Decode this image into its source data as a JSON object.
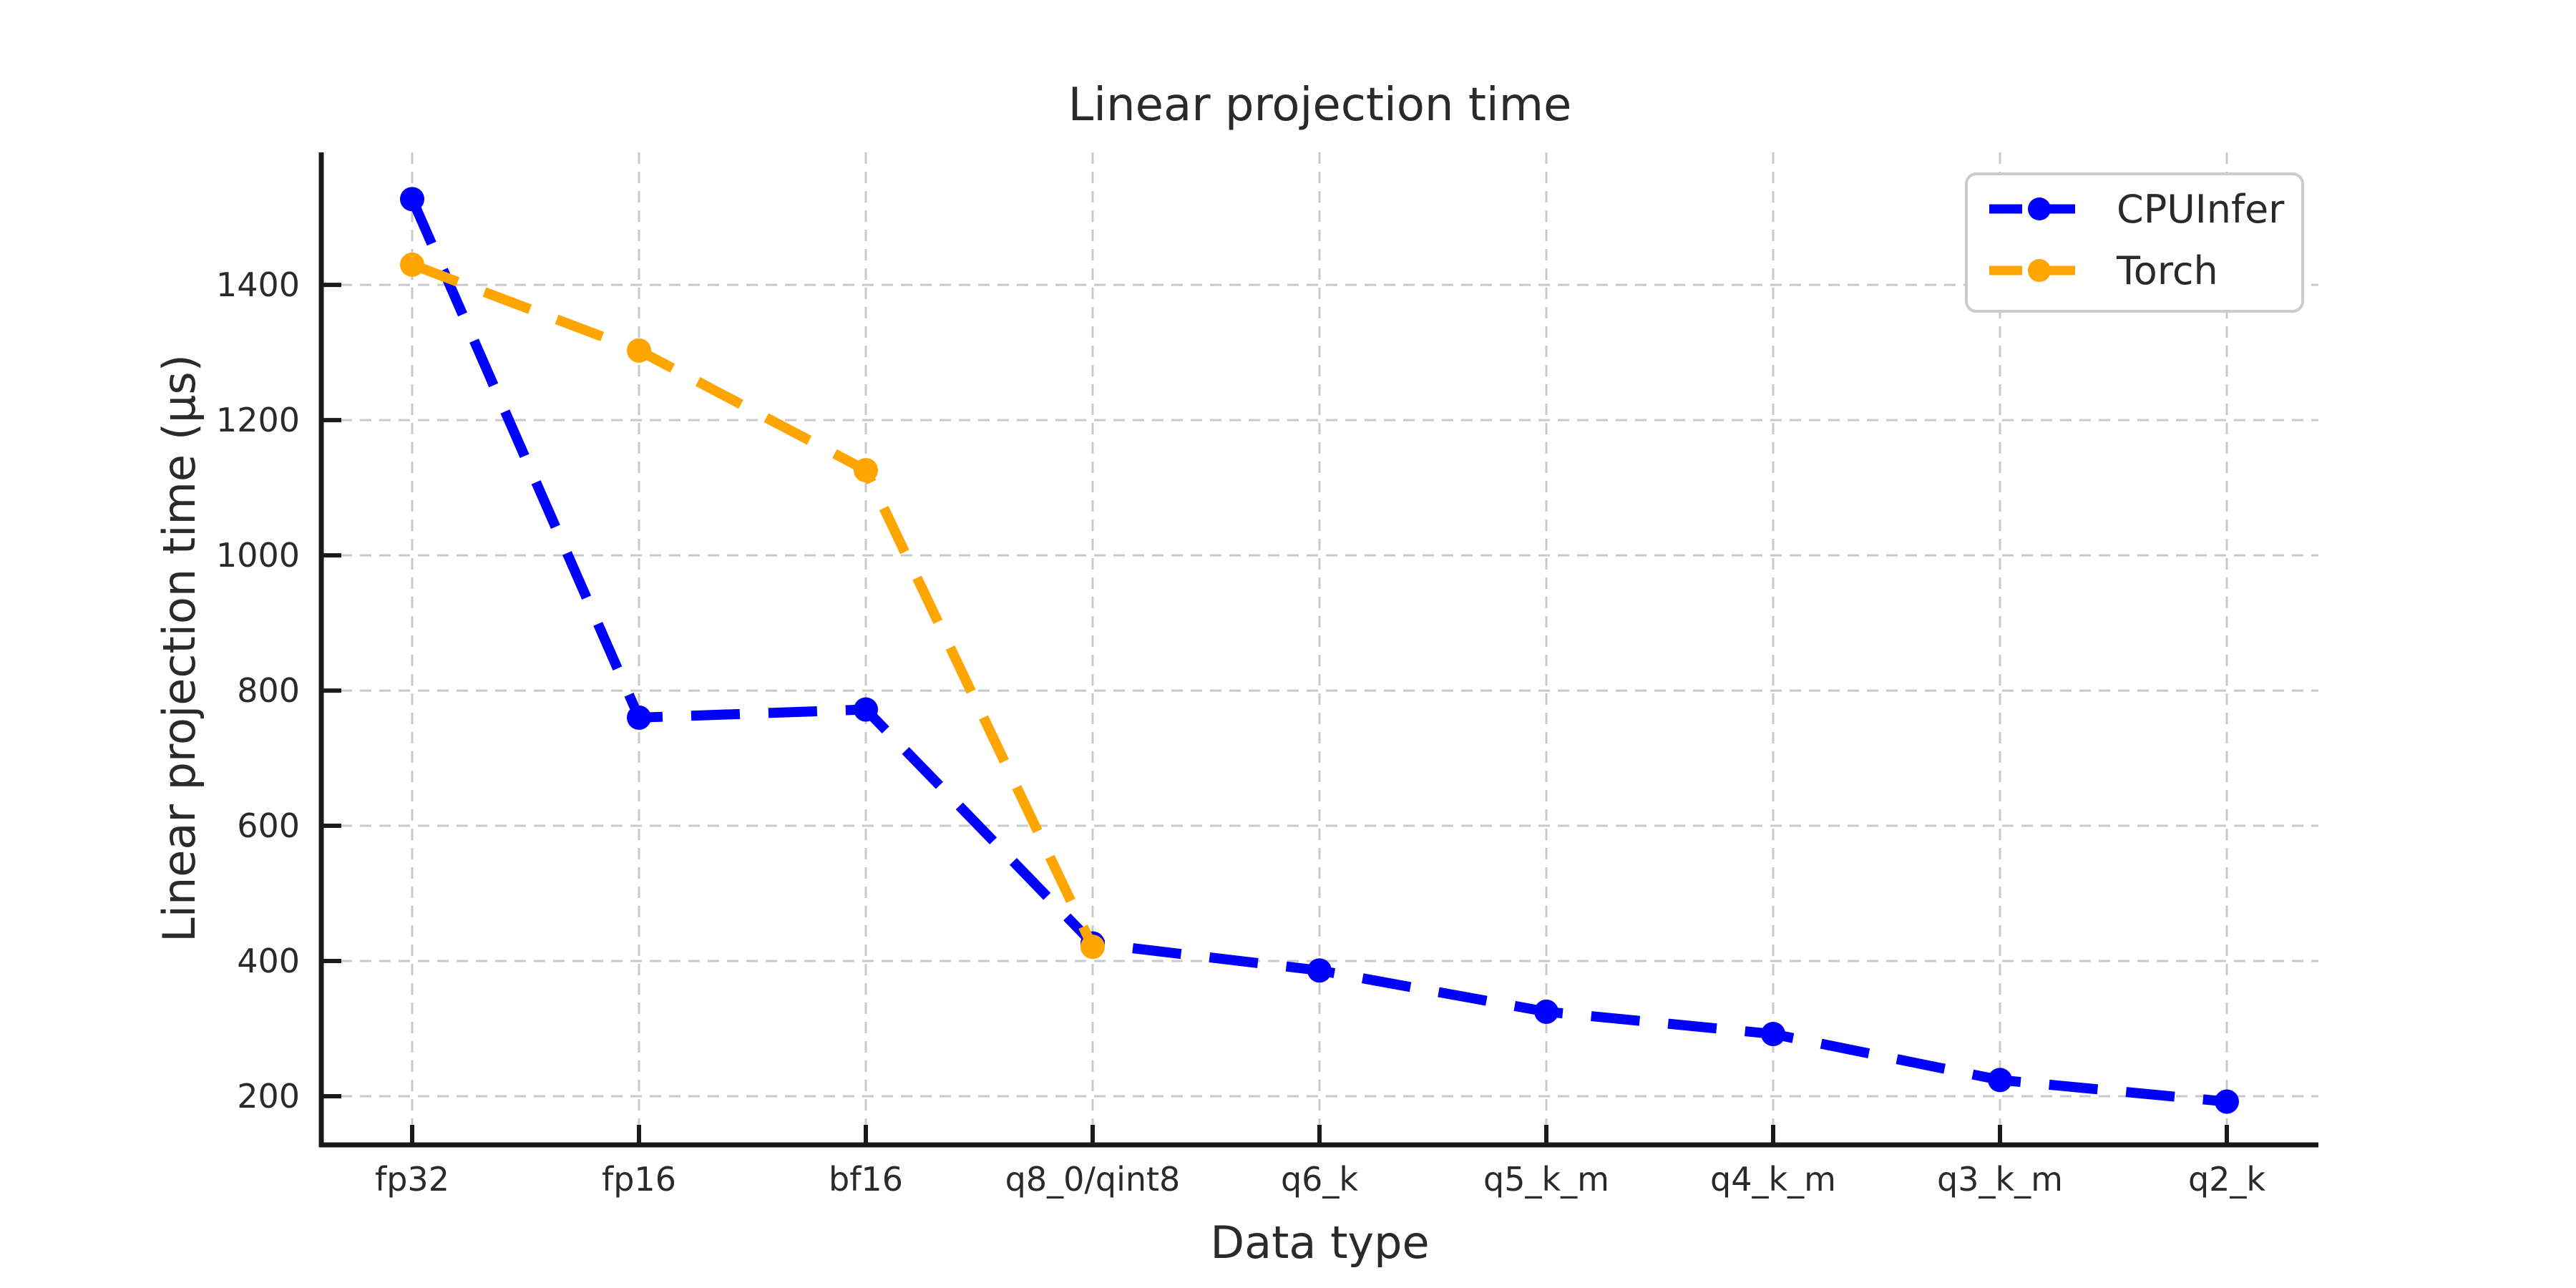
{
  "page": {
    "background_color": "#ffffff"
  },
  "chart_data": {
    "type": "line",
    "title": "Linear projection time",
    "xlabel": "Data type",
    "ylabel": "Linear projection time (μs)",
    "categories": [
      "fp32",
      "fp16",
      "bf16",
      "q8_0/qint8",
      "q6_k",
      "q5_k_m",
      "q4_k_m",
      "q3_k_m",
      "q2_k"
    ],
    "series": [
      {
        "name": "CPUInfer",
        "color": "#0000ff",
        "values": [
          1527,
          760,
          772,
          426,
          386,
          325,
          292,
          224,
          192
        ]
      },
      {
        "name": "Torch",
        "color": "#ffa500",
        "values": [
          1430,
          1303,
          1126,
          421
        ]
      }
    ],
    "y_ticks": [
      200,
      400,
      600,
      800,
      1000,
      1200,
      1400
    ],
    "ylim": [
      128,
      1596
    ],
    "grid": true,
    "grid_color": "#c9c9c9",
    "line_style": "dashed",
    "marker": "circle",
    "legend_position": "upper right",
    "legend_border_color": "#cccccc",
    "axis_color": "#1a1a1a",
    "text_color": "#2a2a2a"
  }
}
